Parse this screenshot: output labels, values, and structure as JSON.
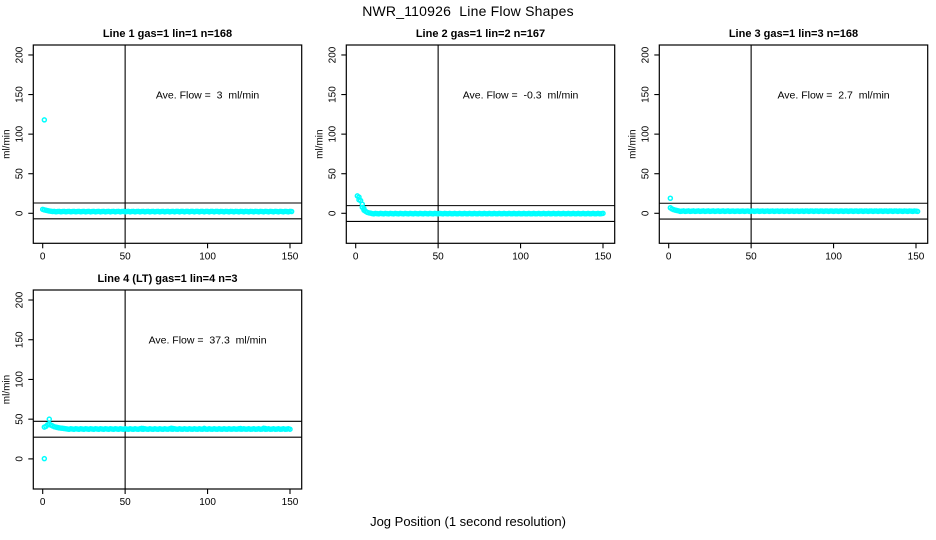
{
  "title": "NWR_110926  Line Flow Shapes",
  "xlabel": "Jog Position (1 second resolution)",
  "colors": {
    "marker": "#00FFFF",
    "axis": "#000000",
    "background": "#FFFFFF"
  },
  "chart_data": [
    {
      "id": "line1",
      "type": "scatter",
      "title": "Line 1 gas=1 lin=1 n=168",
      "ylabel": "ml/min",
      "annotation": "Ave. Flow =  3  ml/min",
      "ave_flow_ml_min": 3,
      "n_points": 168,
      "xlim": [
        -5.7,
        157.1
      ],
      "ylim": [
        -37.9,
        212.6
      ],
      "xticks": [
        0,
        50,
        100,
        150
      ],
      "yticks": [
        0,
        50,
        100,
        150,
        200
      ],
      "vline_x": 50,
      "hlines": [
        13,
        -7
      ],
      "annotation_xy": [
        100,
        150
      ],
      "points": [
        [
          1,
          118
        ],
        [
          0,
          5
        ],
        [
          1,
          4.3
        ],
        [
          2,
          3.8
        ],
        [
          3,
          3.3
        ],
        [
          4,
          2.9
        ],
        [
          5,
          2.6
        ]
      ],
      "plateau": {
        "x_start": 6,
        "x_end": 151,
        "step": 1,
        "y": 2.2,
        "jitter": 0.35
      },
      "bumps": []
    },
    {
      "id": "line2",
      "type": "scatter",
      "title": "Line 2 gas=1 lin=2 n=167",
      "ylabel": "ml/min",
      "annotation": "Ave. Flow =  -0.3  ml/min",
      "ave_flow_ml_min": -0.3,
      "n_points": 167,
      "xlim": [
        -5.7,
        157.1
      ],
      "ylim": [
        -37.9,
        212.6
      ],
      "xticks": [
        0,
        50,
        100,
        150
      ],
      "yticks": [
        0,
        50,
        100,
        150,
        200
      ],
      "vline_x": 50,
      "hlines": [
        9.7,
        -10.3
      ],
      "annotation_xy": [
        100,
        150
      ],
      "points": [
        [
          1,
          22
        ],
        [
          2,
          20.5
        ],
        [
          2,
          17
        ],
        [
          3,
          16
        ],
        [
          4,
          11.5
        ],
        [
          4,
          7.5
        ],
        [
          5,
          6
        ],
        [
          5,
          4
        ],
        [
          6,
          2.5
        ],
        [
          7,
          1.2
        ],
        [
          8,
          0.6
        ],
        [
          9,
          0.2
        ]
      ],
      "plateau": {
        "x_start": 10,
        "x_end": 150,
        "step": 1,
        "y": -0.4,
        "jitter": 0.35
      },
      "bumps": []
    },
    {
      "id": "line3",
      "type": "scatter",
      "title": "Line 3 gas=1 lin=3 n=168",
      "ylabel": "ml/min",
      "annotation": "Ave. Flow =  2.7  ml/min",
      "ave_flow_ml_min": 2.7,
      "n_points": 168,
      "xlim": [
        -5.7,
        157.1
      ],
      "ylim": [
        -37.9,
        212.6
      ],
      "xticks": [
        0,
        50,
        100,
        150
      ],
      "yticks": [
        0,
        50,
        100,
        150,
        200
      ],
      "vline_x": 50,
      "hlines": [
        12.7,
        -7.3
      ],
      "annotation_xy": [
        100,
        150
      ],
      "points": [
        [
          1,
          19
        ],
        [
          1,
          7
        ],
        [
          2,
          5.5
        ],
        [
          3,
          4.6
        ],
        [
          4,
          4
        ],
        [
          5,
          3.5
        ],
        [
          6,
          3.1
        ]
      ],
      "plateau": {
        "x_start": 7,
        "x_end": 151,
        "step": 1,
        "y": 2.7,
        "jitter": 0.35
      },
      "bumps": []
    },
    {
      "id": "line4",
      "type": "scatter",
      "title": "Line 4 (LT) gas=1 lin=4 n=3",
      "ylabel": "ml/min",
      "annotation": "Ave. Flow =  37.3  ml/min",
      "ave_flow_ml_min": 37.3,
      "n_points": 3,
      "xlim": [
        -5.7,
        157.1
      ],
      "ylim": [
        -37.9,
        212.6
      ],
      "xticks": [
        0,
        50,
        100,
        150
      ],
      "yticks": [
        0,
        50,
        100,
        150,
        200
      ],
      "vline_x": 50,
      "hlines": [
        47.3,
        27.3
      ],
      "annotation_xy": [
        100,
        150
      ],
      "points": [
        [
          1,
          0.3
        ],
        [
          1,
          40
        ],
        [
          2,
          41
        ],
        [
          3,
          43
        ],
        [
          4,
          50
        ],
        [
          4,
          44
        ],
        [
          5,
          42.5
        ],
        [
          6,
          41.5
        ],
        [
          7,
          40.5
        ],
        [
          8,
          40
        ],
        [
          9,
          39.5
        ],
        [
          10,
          39
        ],
        [
          11,
          38.8
        ],
        [
          12,
          38.5
        ],
        [
          13,
          38.2
        ],
        [
          14,
          38
        ]
      ],
      "plateau": {
        "x_start": 15,
        "x_end": 150,
        "step": 1,
        "y": 37.6,
        "jitter": 0.4
      },
      "bumps": [
        [
          60,
          0.8
        ],
        [
          61,
          0.6
        ],
        [
          78,
          1.0
        ],
        [
          79,
          0.7
        ],
        [
          98,
          0.8
        ],
        [
          120,
          0.7
        ],
        [
          134,
          0.9
        ],
        [
          135,
          0.7
        ]
      ]
    }
  ]
}
